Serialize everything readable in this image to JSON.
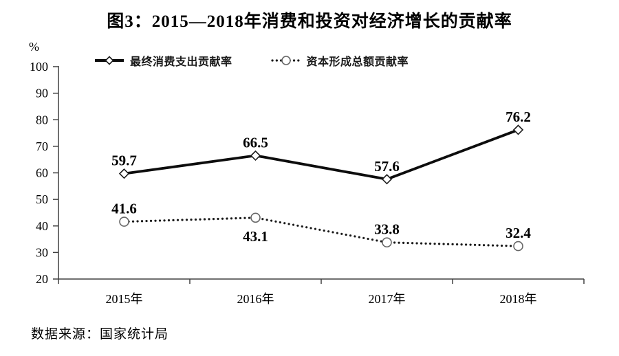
{
  "source": "数据来源：国家统计局",
  "chart_data": {
    "type": "line",
    "title": "图3：2015—2018年消费和投资对经济增长的贡献率",
    "categories": [
      "2015年",
      "2016年",
      "2017年",
      "2018年"
    ],
    "series": [
      {
        "name": "最终消费支出贡献率",
        "values": [
          59.7,
          66.5,
          57.6,
          76.2
        ],
        "marker": "diamond",
        "line_style": "solid",
        "color": "#0d0d0d",
        "marker_stroke": "#1a1a1a",
        "label_positions": [
          "above",
          "above",
          "above",
          "above"
        ]
      },
      {
        "name": "资本形成总额贡献率",
        "values": [
          41.6,
          43.1,
          33.8,
          32.4
        ],
        "marker": "circle",
        "line_style": "dotted",
        "color": "#1a1a1a",
        "marker_stroke": "#666666",
        "label_positions": [
          "above",
          "below",
          "above",
          "above"
        ]
      }
    ],
    "xlabel": "",
    "ylabel": "%",
    "ylim": [
      20,
      100
    ],
    "ytick_step": 10,
    "grid": false,
    "legend_position": "top-left",
    "axis_color": "#404040"
  }
}
